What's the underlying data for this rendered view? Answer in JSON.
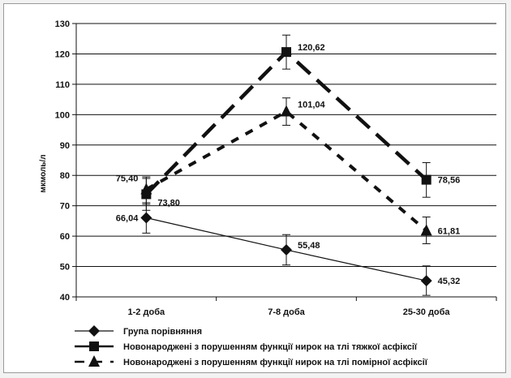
{
  "chart_data": {
    "type": "line",
    "ylabel": "мкмоль/л",
    "ylim": [
      40,
      130
    ],
    "yticks": [
      40,
      50,
      60,
      70,
      80,
      90,
      100,
      110,
      120,
      130
    ],
    "grid": "horizontal",
    "legend_position": "bottom",
    "categories": [
      "1-2  доба",
      "7-8  доба",
      "25-30  доба"
    ],
    "series": [
      {
        "name": "Група порівняння",
        "values": [
          66.04,
          55.48,
          45.32
        ],
        "labels": [
          "66,04",
          "55,48",
          "45,32"
        ],
        "error_low": [
          61.0,
          50.5,
          40.5
        ],
        "error_high": [
          71.0,
          60.5,
          50.2
        ],
        "marker": "diamond",
        "line_style": "solid-thin",
        "color": "#111111"
      },
      {
        "name": "Новонароджені з порушенням функції нирок на тлі тяжкої асфіксії",
        "values": [
          73.8,
          120.62,
          78.56
        ],
        "labels": [
          "73,80",
          "120,62",
          "78,56"
        ],
        "error_low": [
          68.5,
          115.0,
          72.8
        ],
        "error_high": [
          79.0,
          126.2,
          84.2
        ],
        "marker": "square",
        "line_style": "long-dash",
        "color": "#111111"
      },
      {
        "name": "Новонароджені з порушенням функції нирок на тлі помірної асфіксії",
        "values": [
          75.4,
          101.04,
          61.81
        ],
        "labels": [
          "75,40",
          "101,04",
          "61,81"
        ],
        "error_low": [
          70.5,
          96.5,
          57.5
        ],
        "error_high": [
          79.5,
          105.5,
          66.3
        ],
        "marker": "triangle",
        "line_style": "short-dash",
        "color": "#111111"
      }
    ]
  }
}
